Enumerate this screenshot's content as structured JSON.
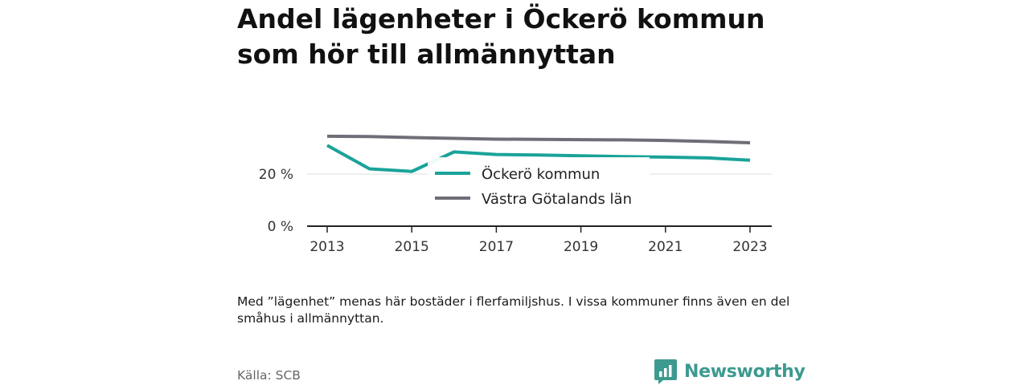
{
  "title": "Andel lägenheter i Öckerö kommun som hör till allmännyttan",
  "note": "Med ”lägenhet” menas här bostäder i flerfamiljshus. I vissa kommuner finns även en del småhus i allmännyttan.",
  "source": "Källa: SCB",
  "brand": {
    "name": "Newsworthy",
    "icon": "newsworthy-logo-icon",
    "color": "#3d9a8f"
  },
  "chart_data": {
    "type": "line",
    "title": "Andel lägenheter i Öckerö kommun som hör till allmännyttan",
    "xlabel": "",
    "ylabel": "",
    "x": [
      2013,
      2014,
      2015,
      2016,
      2017,
      2018,
      2019,
      2020,
      2021,
      2022,
      2023
    ],
    "xticks": [
      2013,
      2015,
      2017,
      2019,
      2021,
      2023
    ],
    "xtick_labels": [
      "2013",
      "2015",
      "2017",
      "2019",
      "2021",
      "2023"
    ],
    "yticks": [
      0,
      20
    ],
    "ytick_labels": [
      "0 %",
      "20 %"
    ],
    "ylim": [
      0,
      35
    ],
    "xlim": [
      2012.5,
      2023.5
    ],
    "grid": true,
    "legend": "center",
    "series": [
      {
        "name": "Öckerö kommun",
        "color": "#1aa399",
        "values": [
          31,
          22,
          21,
          28.5,
          27.5,
          27.3,
          27,
          26.7,
          26.5,
          26.2,
          25.3
        ]
      },
      {
        "name": "Västra Götalands län",
        "color": "#6e6e78",
        "values": [
          34.5,
          34.4,
          34,
          33.7,
          33.4,
          33.3,
          33.2,
          33.1,
          32.9,
          32.5,
          32
        ]
      }
    ]
  }
}
